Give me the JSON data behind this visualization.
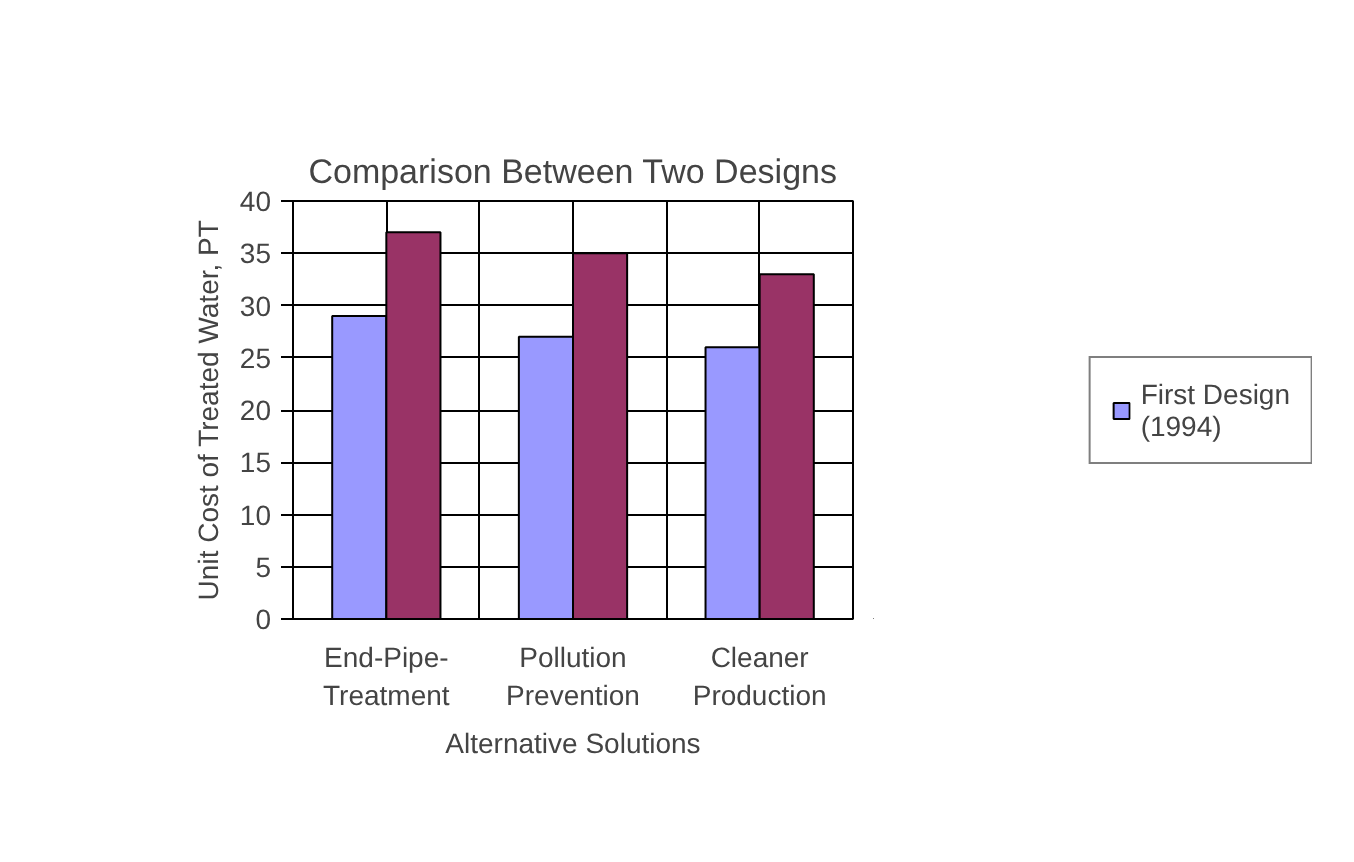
{
  "chart_data": {
    "type": "bar",
    "title": "Comparison Between Two Designs",
    "xlabel": "Alternative Solutions",
    "ylabel": "Unit Cost of Treated Water, PT",
    "categories": [
      "End-Pipe-\nTreatment",
      "Pollution\nPrevention",
      "Cleaner\nProduction"
    ],
    "series": [
      {
        "name": "First Design (1994)",
        "color": "#9999ff",
        "values": [
          29,
          27,
          26
        ]
      },
      {
        "color": "#993366",
        "values": [
          37,
          35,
          33
        ]
      }
    ],
    "ylim": [
      0,
      40
    ],
    "yticks": [
      0,
      5,
      10,
      15,
      20,
      25,
      30,
      35,
      40
    ],
    "grid": true,
    "legend": "right"
  }
}
